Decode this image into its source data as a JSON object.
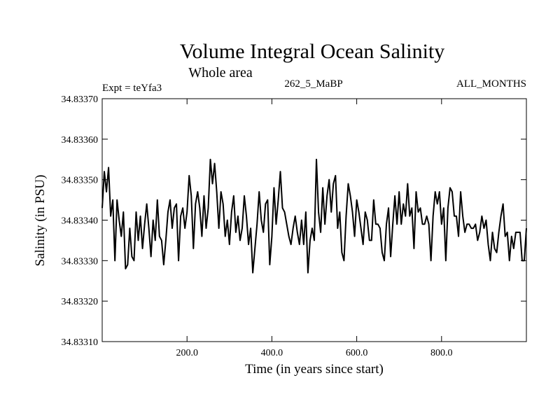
{
  "chart_data": {
    "type": "line",
    "title": "Volume Integral Ocean Salinity",
    "subtitle": "Whole area",
    "header_left": "Expt = teYfa3",
    "header_center": "262_5_MaBP",
    "header_right": "ALL_MONTHS",
    "xlabel": "Time (in years since start)",
    "ylabel": "Salinity (in PSU)",
    "xlim": [
      0,
      1000
    ],
    "ylim": [
      34.8331,
      34.8337
    ],
    "x_ticks": [
      200,
      400,
      600,
      800
    ],
    "x_tick_labels": [
      "200.0",
      "400.0",
      "600.0",
      "800.0"
    ],
    "y_ticks": [
      34.8331,
      34.8332,
      34.8333,
      34.8334,
      34.8335,
      34.8336,
      34.8337
    ],
    "y_tick_labels": [
      "34.83310",
      "34.83320",
      "34.83330",
      "34.83340",
      "34.83350",
      "34.83360",
      "34.83370"
    ],
    "grid": false,
    "series": [
      {
        "name": "salinity",
        "x": [
          0,
          5,
          10,
          15,
          20,
          25,
          30,
          35,
          40,
          45,
          50,
          55,
          60,
          65,
          70,
          75,
          80,
          85,
          90,
          95,
          100,
          105,
          110,
          115,
          120,
          125,
          130,
          135,
          140,
          145,
          150,
          155,
          160,
          165,
          170,
          175,
          180,
          185,
          190,
          195,
          200,
          205,
          210,
          215,
          220,
          225,
          230,
          235,
          240,
          245,
          250,
          255,
          260,
          265,
          270,
          275,
          280,
          285,
          290,
          295,
          300,
          305,
          310,
          315,
          320,
          325,
          330,
          335,
          340,
          345,
          350,
          355,
          360,
          365,
          370,
          375,
          380,
          385,
          390,
          395,
          400,
          405,
          410,
          415,
          420,
          425,
          430,
          435,
          440,
          445,
          450,
          455,
          460,
          465,
          470,
          475,
          480,
          485,
          490,
          495,
          500,
          505,
          510,
          515,
          520,
          525,
          530,
          535,
          540,
          545,
          550,
          555,
          560,
          565,
          570,
          575,
          580,
          585,
          590,
          595,
          600,
          605,
          610,
          615,
          620,
          625,
          630,
          635,
          640,
          645,
          650,
          655,
          660,
          665,
          670,
          675,
          680,
          685,
          690,
          695,
          700,
          705,
          710,
          715,
          720,
          725,
          730,
          735,
          740,
          745,
          750,
          755,
          760,
          765,
          770,
          775,
          780,
          785,
          790,
          795,
          800,
          805,
          810,
          815,
          820,
          825,
          830,
          835,
          840,
          845,
          850,
          855,
          860,
          865,
          870,
          875,
          880,
          885,
          890,
          895,
          900,
          905,
          910,
          915,
          920,
          925,
          930,
          935,
          940,
          945,
          950,
          955,
          960,
          965,
          970,
          975,
          980,
          985,
          990,
          995,
          1000
        ],
        "y": [
          34.83343,
          34.83352,
          34.83347,
          34.83353,
          34.83341,
          34.83345,
          34.8333,
          34.83345,
          34.8334,
          34.83336,
          34.83342,
          34.83328,
          34.83329,
          34.83338,
          34.83331,
          34.8333,
          34.83342,
          34.83335,
          34.83341,
          34.83333,
          34.83339,
          34.83344,
          34.83338,
          34.83331,
          34.8334,
          34.83335,
          34.83345,
          34.83336,
          34.83335,
          34.83329,
          34.83335,
          34.83342,
          34.83345,
          34.83338,
          34.83343,
          34.83344,
          34.8333,
          34.83341,
          34.83343,
          34.83338,
          34.83342,
          34.83351,
          34.83346,
          34.83333,
          34.83344,
          34.83347,
          34.83343,
          34.83336,
          34.83346,
          34.83338,
          34.83343,
          34.83355,
          34.83349,
          34.83354,
          34.83347,
          34.83338,
          34.83347,
          34.83344,
          34.83336,
          34.8334,
          34.83334,
          34.83342,
          34.83346,
          34.83337,
          34.83341,
          34.83335,
          34.83338,
          34.83346,
          34.83341,
          34.83334,
          34.83338,
          34.83327,
          34.83333,
          34.83339,
          34.83347,
          34.8334,
          34.83337,
          34.83344,
          34.83345,
          34.83329,
          34.83336,
          34.83348,
          34.83339,
          34.83345,
          34.83352,
          34.83343,
          34.83342,
          34.83339,
          34.83336,
          34.83334,
          34.83338,
          34.83341,
          34.83337,
          34.83334,
          34.8334,
          34.83334,
          34.83342,
          34.83327,
          34.83335,
          34.83338,
          34.83335,
          34.83355,
          34.83342,
          34.83337,
          34.83348,
          34.83339,
          34.83346,
          34.8335,
          34.83342,
          34.83349,
          34.83351,
          34.83338,
          34.83342,
          34.83332,
          34.8333,
          34.83341,
          34.83349,
          34.83346,
          34.83342,
          34.83336,
          34.83345,
          34.83342,
          34.83338,
          34.83334,
          34.83342,
          34.8334,
          34.83335,
          34.83335,
          34.83345,
          34.83339,
          34.83339,
          34.83338,
          34.83332,
          34.8333,
          34.83339,
          34.83343,
          34.83331,
          34.83339,
          34.83346,
          34.83339,
          34.83347,
          34.83339,
          34.83344,
          34.83341,
          34.83349,
          34.83341,
          34.83343,
          34.83333,
          34.83347,
          34.83342,
          34.83343,
          34.83339,
          34.83339,
          34.83341,
          34.83339,
          34.8333,
          34.83341,
          34.83347,
          34.83344,
          34.83347,
          34.83339,
          34.83343,
          34.8333,
          34.83343,
          34.83348,
          34.83347,
          34.83341,
          34.83341,
          34.83336,
          34.83347,
          34.83341,
          34.83337,
          34.83339,
          34.83339,
          34.83338,
          34.83338,
          34.83339,
          34.83335,
          34.83337,
          34.83341,
          34.83338,
          34.8334,
          34.83334,
          34.8333,
          34.83337,
          34.83333,
          34.83332,
          34.83337,
          34.83341,
          34.83344,
          34.83336,
          34.83337,
          34.8333,
          34.83336,
          34.83333,
          34.83337,
          34.83337,
          34.83337,
          34.8333,
          34.8333,
          34.83338
        ]
      }
    ]
  }
}
